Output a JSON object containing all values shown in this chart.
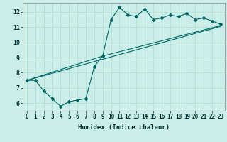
{
  "xlabel": "Humidex (Indice chaleur)",
  "ylabel": "",
  "background_color": "#cceee8",
  "grid_color": "#aaddcc",
  "line_color": "#006666",
  "xlim": [
    -0.5,
    23.5
  ],
  "ylim": [
    5.5,
    12.6
  ],
  "yticks": [
    6,
    7,
    8,
    9,
    10,
    11,
    12
  ],
  "xticks": [
    0,
    1,
    2,
    3,
    4,
    5,
    6,
    7,
    8,
    9,
    10,
    11,
    12,
    13,
    14,
    15,
    16,
    17,
    18,
    19,
    20,
    21,
    22,
    23
  ],
  "line1_x": [
    0,
    1,
    2,
    3,
    4,
    5,
    6,
    7,
    8,
    9,
    10,
    11,
    12,
    13,
    14,
    15,
    16,
    17,
    18,
    19,
    20,
    21,
    22,
    23
  ],
  "line1_y": [
    7.5,
    7.5,
    6.8,
    6.3,
    5.8,
    6.1,
    6.2,
    6.3,
    8.4,
    9.1,
    11.5,
    12.3,
    11.8,
    11.7,
    12.2,
    11.5,
    11.6,
    11.8,
    11.7,
    11.9,
    11.5,
    11.6,
    11.4,
    11.2
  ],
  "line2_x": [
    0,
    9,
    23
  ],
  "line2_y": [
    7.5,
    9.1,
    11.1
  ],
  "line3_x": [
    0,
    23
  ],
  "line3_y": [
    7.5,
    11.05
  ],
  "tick_fontsize": 5.5,
  "xlabel_fontsize": 6.5
}
